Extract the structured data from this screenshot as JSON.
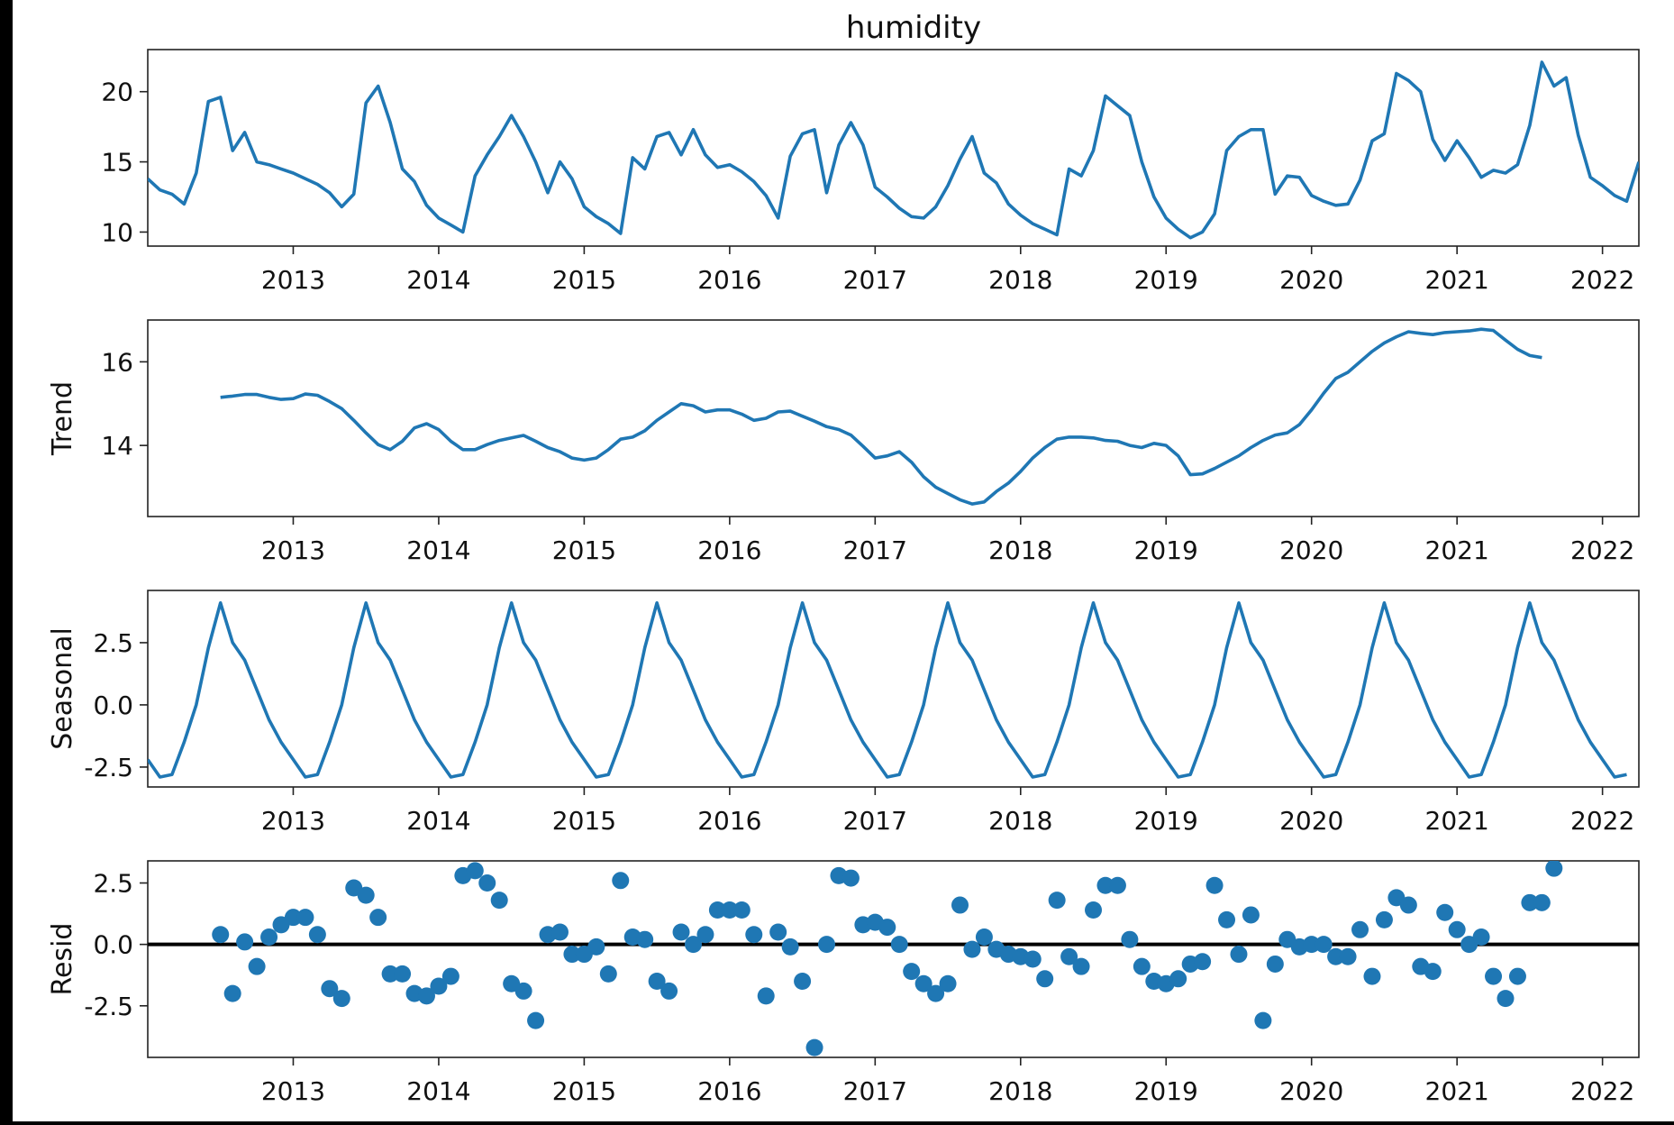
{
  "figure_title": "humidity",
  "colors": {
    "series": "#1f77b4",
    "zero_line": "#000000",
    "axes": "#222222"
  },
  "chart_data": [
    {
      "type": "line",
      "title": "humidity",
      "ylabel": "",
      "x_ticks": [
        "2013",
        "2014",
        "2015",
        "2016",
        "2017",
        "2018",
        "2019",
        "2020",
        "2021",
        "2022"
      ],
      "xlim": [
        "2012-01",
        "2022-04"
      ],
      "ylim": [
        9.0,
        23.0
      ],
      "y_ticks": [
        "10",
        "15",
        "20"
      ],
      "x_start": "2012-01",
      "x_step": "1 month",
      "values": [
        13.8,
        13.0,
        12.7,
        12.0,
        14.2,
        19.3,
        19.6,
        15.8,
        17.1,
        15.0,
        14.8,
        14.5,
        14.2,
        13.8,
        13.4,
        12.8,
        11.8,
        12.7,
        19.2,
        20.4,
        17.8,
        14.5,
        13.6,
        11.9,
        11.0,
        10.5,
        10.0,
        14.0,
        15.5,
        16.8,
        18.3,
        16.8,
        15.0,
        12.8,
        15.0,
        13.8,
        11.8,
        11.1,
        10.6,
        9.9,
        15.3,
        14.5,
        16.8,
        17.1,
        15.5,
        17.3,
        15.5,
        14.6,
        14.8,
        14.3,
        13.6,
        12.6,
        11.0,
        15.4,
        17.0,
        17.3,
        12.8,
        16.2,
        17.8,
        16.2,
        13.2,
        12.5,
        11.7,
        11.1,
        11.0,
        11.8,
        13.3,
        15.2,
        16.8,
        14.2,
        13.5,
        12.0,
        11.2,
        10.6,
        10.2,
        9.8,
        14.5,
        14.0,
        15.8,
        19.7,
        19.0,
        18.3,
        15.0,
        12.5,
        11.0,
        10.2,
        9.6,
        10.0,
        11.3,
        15.8,
        16.8,
        17.3,
        17.3,
        12.7,
        14.0,
        13.9,
        12.6,
        12.2,
        11.9,
        12.0,
        13.7,
        16.5,
        17.0,
        21.3,
        20.8,
        20.0,
        16.6,
        15.1,
        16.5,
        15.3,
        13.9,
        14.4,
        14.2,
        14.8,
        17.6,
        22.1,
        20.4,
        21.0,
        16.9,
        13.9,
        13.3,
        12.6,
        12.2,
        15.0
      ]
    },
    {
      "type": "line",
      "title": "",
      "ylabel": "Trend",
      "x_ticks": [
        "2013",
        "2014",
        "2015",
        "2016",
        "2017",
        "2018",
        "2019",
        "2020",
        "2021",
        "2022"
      ],
      "xlim": [
        "2012-01",
        "2022-04"
      ],
      "ylim": [
        12.3,
        17.0
      ],
      "y_ticks": [
        "14",
        "16"
      ],
      "x_start": "2012-07",
      "x_step": "1 month",
      "values": [
        15.15,
        15.18,
        15.22,
        15.22,
        15.15,
        15.1,
        15.12,
        15.23,
        15.2,
        15.05,
        14.88,
        14.6,
        14.3,
        14.02,
        13.9,
        14.1,
        14.42,
        14.52,
        14.38,
        14.1,
        13.9,
        13.9,
        14.02,
        14.12,
        14.18,
        14.24,
        14.1,
        13.95,
        13.85,
        13.7,
        13.65,
        13.7,
        13.9,
        14.15,
        14.2,
        14.35,
        14.6,
        14.8,
        15.0,
        14.95,
        14.8,
        14.85,
        14.85,
        14.75,
        14.6,
        14.65,
        14.8,
        14.82,
        14.7,
        14.58,
        14.45,
        14.38,
        14.25,
        13.98,
        13.7,
        13.75,
        13.85,
        13.6,
        13.25,
        13.0,
        12.85,
        12.7,
        12.6,
        12.65,
        12.9,
        13.1,
        13.38,
        13.7,
        13.95,
        14.15,
        14.2,
        14.2,
        14.18,
        14.12,
        14.1,
        14.0,
        13.95,
        14.05,
        14.0,
        13.75,
        13.3,
        13.32,
        13.45,
        13.6,
        13.75,
        13.95,
        14.12,
        14.25,
        14.3,
        14.5,
        14.85,
        15.25,
        15.6,
        15.75,
        16.0,
        16.25,
        16.45,
        16.6,
        16.72,
        16.68,
        16.65,
        16.7,
        16.72,
        16.74,
        16.78,
        16.75,
        16.52,
        16.3,
        16.15,
        16.1
      ]
    },
    {
      "type": "line",
      "title": "",
      "ylabel": "Seasonal",
      "x_ticks": [
        "2013",
        "2014",
        "2015",
        "2016",
        "2017",
        "2018",
        "2019",
        "2020",
        "2021",
        "2022"
      ],
      "xlim": [
        "2012-01",
        "2022-04"
      ],
      "ylim": [
        -3.3,
        4.6
      ],
      "y_ticks": [
        "2.5",
        "0.0",
        "-2.5"
      ],
      "x_start": "2012-01",
      "x_step": "1 month",
      "repeating_pattern": [
        -2.2,
        -2.9,
        -2.8,
        -1.5,
        0.0,
        2.3,
        4.1,
        2.5,
        1.8,
        0.6,
        -0.6,
        -1.5
      ],
      "cycles": 10.25
    },
    {
      "type": "scatter",
      "title": "",
      "ylabel": "Resid",
      "x_ticks": [
        "2013",
        "2014",
        "2015",
        "2016",
        "2017",
        "2018",
        "2019",
        "2020",
        "2021",
        "2022"
      ],
      "xlim": [
        "2012-01",
        "2022-04"
      ],
      "ylim": [
        -4.6,
        3.4
      ],
      "y_ticks": [
        "2.5",
        "0.0",
        "-2.5"
      ],
      "zero_line": 0,
      "x_start": "2012-07",
      "x_step": "1 month",
      "values": [
        0.4,
        -2.0,
        0.1,
        -0.9,
        0.3,
        0.8,
        1.1,
        1.1,
        0.4,
        -1.8,
        -2.2,
        2.3,
        2.0,
        1.1,
        -1.2,
        -1.2,
        -2.0,
        -2.1,
        -1.7,
        -1.3,
        2.8,
        3.0,
        2.5,
        1.8,
        -1.6,
        -1.9,
        -3.1,
        0.4,
        0.5,
        -0.4,
        -0.4,
        -0.1,
        -1.2,
        2.6,
        0.3,
        0.2,
        -1.5,
        -1.9,
        0.5,
        0.0,
        0.4,
        1.4,
        1.4,
        1.4,
        0.4,
        -2.1,
        0.5,
        -0.1,
        -1.5,
        -4.2,
        0.0,
        2.8,
        2.7,
        0.8,
        0.9,
        0.7,
        0.0,
        -1.1,
        -1.6,
        -2.0,
        -1.6,
        1.6,
        -0.2,
        0.3,
        -0.2,
        -0.4,
        -0.5,
        -0.6,
        -1.4,
        1.8,
        -0.5,
        -0.9,
        1.4,
        2.4,
        2.4,
        0.2,
        -0.9,
        -1.5,
        -1.6,
        -1.4,
        -0.8,
        -0.7,
        2.4,
        1.0,
        -0.4,
        1.2,
        -3.1,
        -0.8,
        0.2,
        -0.1,
        0.0,
        0.0,
        -0.5,
        -0.5,
        0.6,
        -1.3,
        1.0,
        1.9,
        1.6,
        -0.9,
        -1.1,
        1.3,
        0.6,
        0.0,
        0.3,
        -1.3,
        -2.2,
        -1.3,
        1.7,
        1.7,
        3.1
      ]
    }
  ]
}
